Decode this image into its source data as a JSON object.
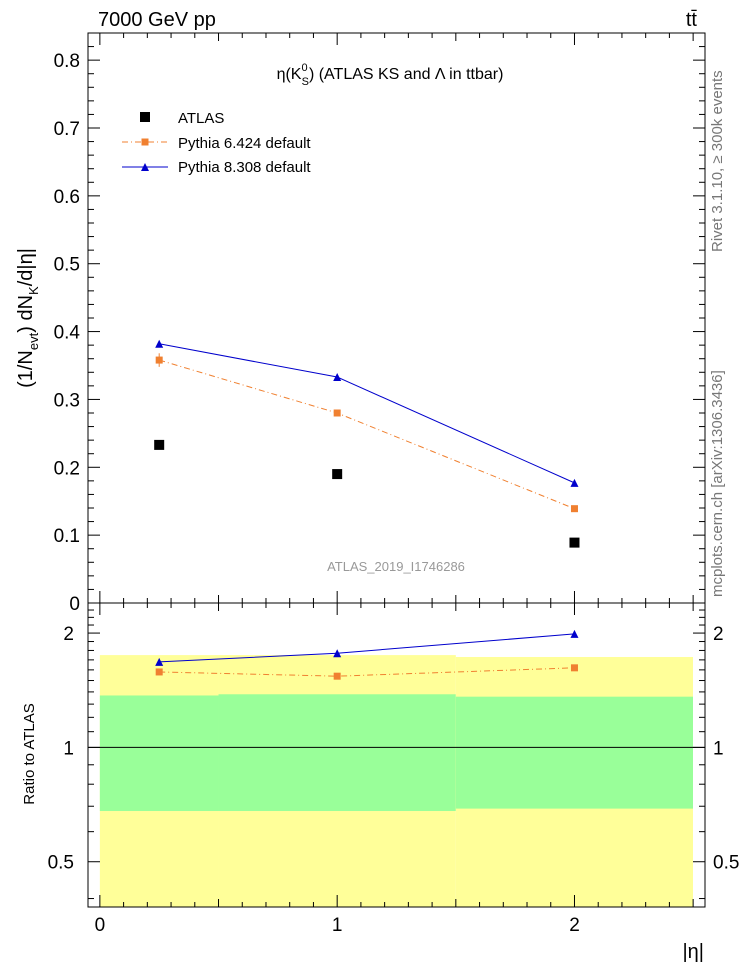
{
  "header": {
    "left": "7000 GeV pp",
    "right": "tt̄"
  },
  "side_labels": {
    "rivet": "Rivet 3.1.10, ≥ 300k events",
    "mcplots": "mcplots.cern.ch [arXiv:1306.3436]"
  },
  "chart_data": [
    {
      "type": "scatter",
      "title": "η(K⁰_S) (ATLAS KS and Λ in ttbar)",
      "title_parts": {
        "eta": "η(K",
        "sup": "0",
        "sub": "S",
        "rest": ") (ATLAS KS and Λ in ttbar)"
      },
      "xlabel": "|η|",
      "ylabel": "(1/N_evt) dN_K/d|η|",
      "ylabel_parts": {
        "a": "(1/N",
        "a_sub": "evt",
        "b": ") dN",
        "b_sub": "K",
        "c": "/d|η|"
      },
      "xlim": [
        -0.05,
        2.55
      ],
      "ylim": [
        0,
        0.84
      ],
      "yticks": [
        0,
        0.1,
        0.2,
        0.3,
        0.4,
        0.5,
        0.6,
        0.7,
        0.8
      ],
      "ytick_labels": [
        "0",
        "0.1",
        "0.2",
        "0.3",
        "0.4",
        "0.5",
        "0.6",
        "0.7",
        "0.8"
      ],
      "watermark": "ATLAS_2019_I1746286",
      "legend_position": "top-left",
      "x": [
        0.25,
        1.0,
        2.0
      ],
      "series": [
        {
          "name": "ATLAS",
          "marker": "square",
          "color": "#000000",
          "values": [
            0.233,
            0.19,
            0.089
          ]
        },
        {
          "name": "Pythia 6.424 default",
          "marker": "square-small",
          "color": "#f08030",
          "line": "dashdot",
          "values": [
            0.358,
            0.28,
            0.139
          ],
          "errors": [
            0.01,
            0.004,
            0.003
          ]
        },
        {
          "name": "Pythia 8.308 default",
          "marker": "triangle",
          "color": "#0000cc",
          "line": "solid",
          "values": [
            0.382,
            0.333,
            0.177
          ]
        }
      ]
    },
    {
      "type": "line",
      "ylabel": "Ratio to ATLAS",
      "xlabel": "|η|",
      "yscale": "log",
      "ylim": [
        0.38,
        2.4
      ],
      "yticks": [
        0.5,
        1,
        2
      ],
      "ytick_labels": [
        "0.5",
        "1",
        "2"
      ],
      "xticks": [
        0,
        1,
        2
      ],
      "xtick_labels": [
        "0",
        "1",
        "2"
      ],
      "x": [
        0.25,
        1.0,
        2.0
      ],
      "bins": [
        [
          0,
          0.5
        ],
        [
          0.5,
          1.5
        ],
        [
          1.5,
          2.5
        ]
      ],
      "bands": {
        "yellow": {
          "color": "#ffff99",
          "low": [
            0.38,
            0.38,
            0.38
          ],
          "high": [
            1.75,
            1.75,
            1.73
          ]
        },
        "green": {
          "color": "#99ff99",
          "low": [
            0.68,
            0.68,
            0.69
          ],
          "high": [
            1.37,
            1.38,
            1.36
          ]
        }
      },
      "reference_line": 1,
      "series": [
        {
          "name": "Pythia 6.424 default",
          "color": "#f08030",
          "line": "dashdot",
          "values": [
            1.58,
            1.54,
            1.62
          ]
        },
        {
          "name": "Pythia 8.308 default",
          "color": "#0000cc",
          "line": "solid",
          "values": [
            1.68,
            1.77,
            1.99
          ]
        }
      ]
    }
  ]
}
